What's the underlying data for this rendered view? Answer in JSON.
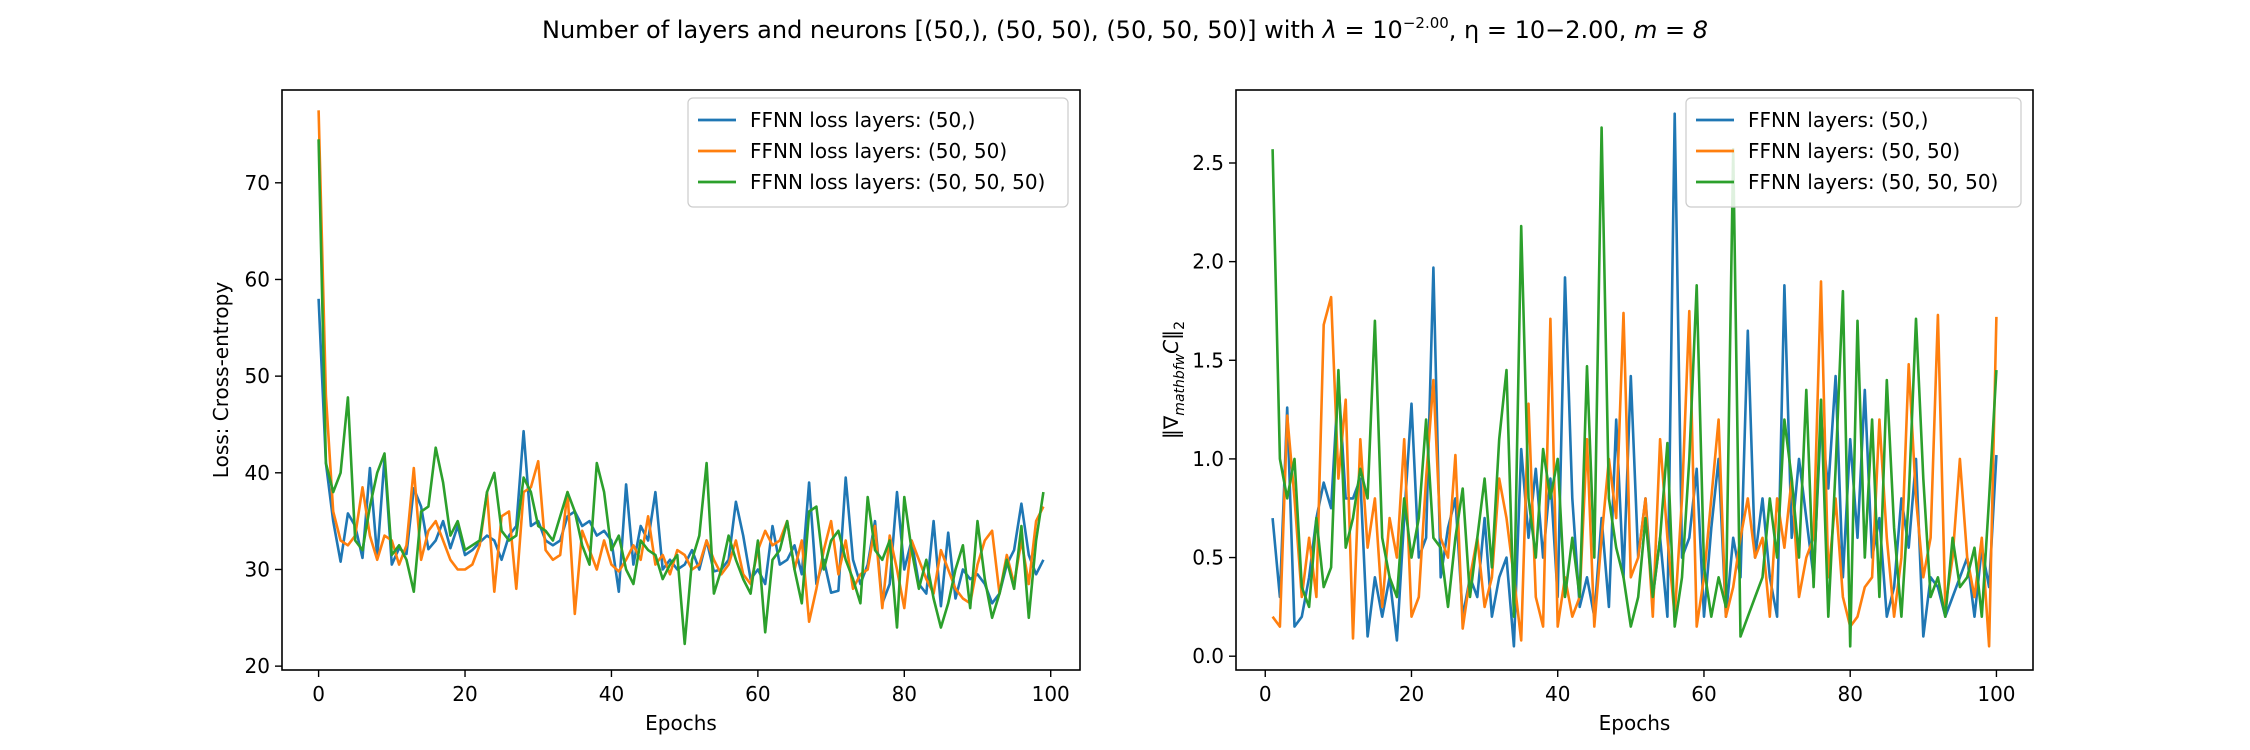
{
  "figure_title": {
    "prefix": "Number of layers and neurons [(50,), (50, 50), (50, 50, 50)] with ",
    "lambda_symbol": "λ",
    "lambda_eq": " = 10",
    "lambda_exp": "−2.00",
    "eta_part": ", η = 10−2.00, ",
    "m_part": "m = 8"
  },
  "chart_data": [
    {
      "type": "line",
      "title": "",
      "xlabel": "Epochs",
      "ylabel": "Loss: Cross-entropy",
      "xlim": [
        -5,
        104
      ],
      "ylim": [
        19.6,
        79.6
      ],
      "xticks": [
        0,
        20,
        40,
        60,
        80,
        100
      ],
      "yticks": [
        20,
        30,
        40,
        50,
        60,
        70
      ],
      "grid": false,
      "legend_position": "top-right",
      "x_start": 0,
      "series": [
        {
          "name": "FFNN loss layers: (50,)",
          "color": "#1f77b4",
          "values": [
            58.0,
            41.0,
            35.0,
            30.8,
            35.8,
            34.5,
            31.2,
            40.5,
            31.3,
            41.5,
            30.5,
            32.2,
            31.6,
            38.4,
            36.5,
            32.1,
            33.0,
            35.0,
            32.2,
            34.5,
            31.5,
            32.0,
            32.8,
            33.5,
            33.0,
            31.0,
            33.5,
            34.5,
            44.3,
            34.5,
            35.0,
            33.0,
            32.5,
            33.0,
            35.5,
            36.0,
            34.5,
            35.0,
            33.5,
            34.0,
            33.0,
            27.7,
            38.8,
            30.5,
            34.5,
            33.0,
            38.0,
            30.0,
            31.0,
            30.0,
            30.5,
            32.0,
            30.0,
            33.0,
            29.8,
            30.0,
            31.0,
            37.0,
            33.5,
            29.0,
            30.0,
            28.5,
            34.5,
            30.5,
            31.0,
            32.5,
            29.5,
            39.0,
            28.5,
            31.0,
            27.6,
            27.8,
            39.5,
            31.0,
            28.5,
            30.5,
            35.0,
            26.5,
            28.5,
            38.0,
            30.0,
            33.0,
            28.5,
            27.5,
            35.0,
            26.2,
            33.8,
            27.0,
            30.0,
            29.0,
            29.5,
            28.5,
            26.5,
            27.5,
            30.5,
            32.0,
            36.8,
            31.5,
            29.5,
            31.0
          ]
        },
        {
          "name": "FFNN loss layers: (50, 50)",
          "color": "#ff7f0e",
          "values": [
            77.5,
            48.0,
            36.0,
            33.0,
            32.5,
            33.5,
            38.5,
            33.5,
            31.0,
            33.5,
            33.0,
            30.5,
            32.5,
            40.5,
            31.0,
            34.0,
            35.0,
            33.0,
            31.0,
            30.0,
            30.0,
            30.5,
            32.5,
            38.0,
            27.7,
            35.5,
            36.0,
            28.0,
            38.0,
            38.5,
            41.2,
            32.0,
            31.0,
            31.5,
            38.0,
            25.4,
            34.0,
            32.0,
            30.0,
            33.0,
            30.5,
            29.8,
            31.0,
            32.5,
            31.0,
            35.5,
            30.5,
            31.5,
            29.5,
            32.0,
            31.5,
            30.0,
            30.5,
            33.0,
            31.0,
            29.5,
            30.5,
            33.0,
            29.5,
            28.5,
            32.0,
            34.0,
            32.5,
            33.0,
            35.0,
            30.0,
            33.0,
            24.6,
            28.0,
            32.0,
            35.0,
            29.5,
            33.0,
            28.0,
            29.5,
            30.0,
            34.5,
            26.0,
            33.5,
            30.0,
            26.0,
            33.0,
            31.0,
            29.0,
            27.5,
            32.0,
            30.0,
            28.0,
            27.0,
            26.5,
            30.5,
            33.0,
            34.0,
            27.5,
            31.5,
            28.5,
            33.0,
            28.5,
            35.0,
            36.5
          ]
        },
        {
          "name": "FFNN loss layers: (50, 50, 50)",
          "color": "#2ca02c",
          "values": [
            74.5,
            41.0,
            38.0,
            40.0,
            47.8,
            33.0,
            32.0,
            36.5,
            40.0,
            42.0,
            31.5,
            32.5,
            31.0,
            27.7,
            36.0,
            36.5,
            42.6,
            39.0,
            33.5,
            35.0,
            32.0,
            32.5,
            33.0,
            38.0,
            40.0,
            34.0,
            33.0,
            33.5,
            39.5,
            38.0,
            34.5,
            34.0,
            33.0,
            35.5,
            38.0,
            36.0,
            32.5,
            30.5,
            41.0,
            38.0,
            32.0,
            33.5,
            30.0,
            28.5,
            33.0,
            32.0,
            31.5,
            29.0,
            30.5,
            31.5,
            22.3,
            31.0,
            33.5,
            41.0,
            27.5,
            30.0,
            33.5,
            31.0,
            29.0,
            27.5,
            33.0,
            23.5,
            31.0,
            32.0,
            35.0,
            30.0,
            26.5,
            36.0,
            36.5,
            30.0,
            33.0,
            34.0,
            31.0,
            29.0,
            26.5,
            37.5,
            32.0,
            31.0,
            33.0,
            24.0,
            37.5,
            32.0,
            28.0,
            31.0,
            27.0,
            24.0,
            26.5,
            30.0,
            32.5,
            26.0,
            35.0,
            29.0,
            25.0,
            27.5,
            31.0,
            28.0,
            34.5,
            25.0,
            33.0,
            38.0
          ]
        }
      ]
    },
    {
      "type": "line",
      "title": "",
      "xlabel": "Epochs",
      "ylabel": "‖∇mathbfwC‖2",
      "ylabel_parts": {
        "open": "‖∇",
        "sub1": "mathbfw",
        "mid": "C‖",
        "sub2": "2"
      },
      "xlim": [
        -4,
        105
      ],
      "ylim": [
        -0.07,
        2.87
      ],
      "xticks": [
        0,
        20,
        40,
        60,
        80,
        100
      ],
      "xtick_labels": [
        "0",
        "20",
        "40",
        "60",
        "80",
        "100"
      ],
      "yticks": [
        0.0,
        0.5,
        1.0,
        1.5,
        2.0,
        2.5
      ],
      "ytick_labels": [
        "0.0",
        "0.5",
        "1.0",
        "1.5",
        "2.0",
        "2.5"
      ],
      "grid": false,
      "legend_position": "top-right",
      "x_start": 1,
      "series": [
        {
          "name": "FFNN layers: (50,)",
          "color": "#1f77b4",
          "values": [
            0.7,
            0.3,
            1.26,
            0.15,
            0.2,
            0.4,
            0.7,
            0.88,
            0.75,
            1.4,
            0.8,
            0.8,
            0.9,
            0.1,
            0.4,
            0.2,
            0.4,
            0.08,
            0.7,
            1.28,
            0.5,
            0.6,
            1.97,
            0.4,
            0.65,
            0.8,
            0.2,
            0.4,
            0.3,
            0.7,
            0.2,
            0.4,
            0.5,
            0.05,
            1.05,
            0.6,
            0.95,
            0.5,
            0.9,
            0.3,
            1.92,
            0.8,
            0.25,
            0.4,
            0.2,
            0.7,
            0.25,
            1.2,
            0.4,
            1.42,
            0.5,
            0.8,
            0.3,
            0.6,
            0.2,
            2.75,
            0.5,
            0.6,
            0.95,
            0.2,
            0.65,
            1.0,
            0.2,
            0.6,
            0.4,
            1.65,
            0.5,
            0.8,
            0.4,
            0.2,
            1.88,
            0.6,
            1.0,
            0.7,
            0.4,
            1.2,
            0.85,
            1.42,
            0.4,
            1.1,
            0.6,
            1.35,
            0.5,
            0.7,
            0.2,
            0.35,
            0.8,
            0.55,
            1.0,
            0.1,
            0.4,
            0.35,
            0.2,
            0.3,
            0.4,
            0.5,
            0.2,
            0.55,
            0.35,
            1.02
          ]
        },
        {
          "name": "FFNN layers: (50, 50)",
          "color": "#ff7f0e",
          "values": [
            0.2,
            0.15,
            1.22,
            0.8,
            0.3,
            0.6,
            0.3,
            1.68,
            1.82,
            0.9,
            1.3,
            0.09,
            1.1,
            0.55,
            0.8,
            0.25,
            0.7,
            0.5,
            1.1,
            0.2,
            0.3,
            0.9,
            1.4,
            0.6,
            0.5,
            1.02,
            0.14,
            0.4,
            0.6,
            0.25,
            0.4,
            0.9,
            0.7,
            0.4,
            0.08,
            1.28,
            0.3,
            0.15,
            1.71,
            0.15,
            0.4,
            0.2,
            0.3,
            1.1,
            0.15,
            0.6,
            1.0,
            0.7,
            1.74,
            0.4,
            0.5,
            0.8,
            0.2,
            1.1,
            0.6,
            0.2,
            0.8,
            1.75,
            0.15,
            0.4,
            0.8,
            1.2,
            0.2,
            0.35,
            0.6,
            0.8,
            0.5,
            0.6,
            0.2,
            0.8,
            0.55,
            0.9,
            0.3,
            0.5,
            0.6,
            1.9,
            0.4,
            0.8,
            0.3,
            0.15,
            0.2,
            0.35,
            0.4,
            1.2,
            0.6,
            0.2,
            0.5,
            1.48,
            0.8,
            0.4,
            0.6,
            1.73,
            0.25,
            0.5,
            1.0,
            0.5,
            0.3,
            0.6,
            0.05,
            1.72
          ]
        },
        {
          "name": "FFNN layers: (50, 50, 50)",
          "color": "#2ca02c",
          "values": [
            2.57,
            1.0,
            0.8,
            1.0,
            0.35,
            0.25,
            0.7,
            0.35,
            0.45,
            1.45,
            0.55,
            0.7,
            0.95,
            0.8,
            1.7,
            0.6,
            0.4,
            0.3,
            0.8,
            0.5,
            0.7,
            1.2,
            0.6,
            0.55,
            0.25,
            0.6,
            0.85,
            0.3,
            0.6,
            0.9,
            0.45,
            1.1,
            1.45,
            0.2,
            2.18,
            0.8,
            0.5,
            1.05,
            0.8,
            1.0,
            0.3,
            0.6,
            0.3,
            1.47,
            0.5,
            2.68,
            0.8,
            0.55,
            0.4,
            0.15,
            0.3,
            0.7,
            0.3,
            0.6,
            1.08,
            0.15,
            0.4,
            1.0,
            1.88,
            0.45,
            0.2,
            0.4,
            0.25,
            2.57,
            0.1,
            0.2,
            0.3,
            0.4,
            0.8,
            0.5,
            1.2,
            0.9,
            0.5,
            1.35,
            0.35,
            1.3,
            0.2,
            0.95,
            1.85,
            0.05,
            1.7,
            0.5,
            1.2,
            0.3,
            1.4,
            0.65,
            0.2,
            0.8,
            1.71,
            0.9,
            0.3,
            0.4,
            0.2,
            0.6,
            0.35,
            0.4,
            0.55,
            0.2,
            0.8,
            1.45
          ]
        }
      ]
    }
  ]
}
